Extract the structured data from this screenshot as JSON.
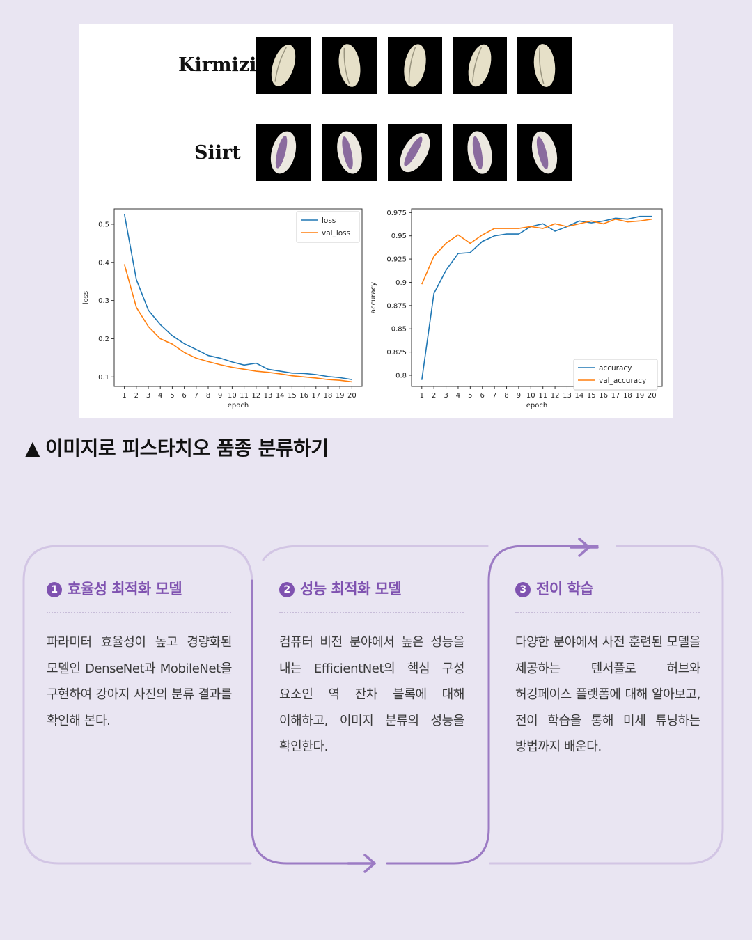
{
  "figure": {
    "rows": [
      {
        "label": "Kirmizi",
        "tiles": [
          "kirmizi-sample-1",
          "kirmizi-sample-2",
          "kirmizi-sample-3",
          "kirmizi-sample-4",
          "kirmizi-sample-5"
        ]
      },
      {
        "label": "Siirt",
        "tiles": [
          "siirt-sample-1",
          "siirt-sample-2",
          "siirt-sample-3",
          "siirt-sample-4",
          "siirt-sample-5"
        ]
      }
    ]
  },
  "chart_data": [
    {
      "type": "line",
      "xlabel": "epoch",
      "ylabel": "loss",
      "x": [
        1,
        2,
        3,
        4,
        5,
        6,
        7,
        8,
        9,
        10,
        11,
        12,
        13,
        14,
        15,
        16,
        17,
        18,
        19,
        20
      ],
      "yticks": [
        0.1,
        0.2,
        0.3,
        0.4,
        0.5
      ],
      "ylim": [
        0.075,
        0.54
      ],
      "legend_position": "top-right",
      "series": [
        {
          "name": "loss",
          "color": "#1f77b4",
          "values": [
            0.527,
            0.355,
            0.275,
            0.237,
            0.208,
            0.187,
            0.172,
            0.156,
            0.149,
            0.139,
            0.131,
            0.136,
            0.12,
            0.115,
            0.11,
            0.109,
            0.106,
            0.101,
            0.098,
            0.093
          ]
        },
        {
          "name": "val_loss",
          "color": "#ff7f0e",
          "values": [
            0.395,
            0.282,
            0.232,
            0.2,
            0.186,
            0.164,
            0.149,
            0.14,
            0.132,
            0.125,
            0.12,
            0.115,
            0.112,
            0.108,
            0.103,
            0.1,
            0.097,
            0.093,
            0.091,
            0.087
          ]
        }
      ]
    },
    {
      "type": "line",
      "xlabel": "epoch",
      "ylabel": "accuracy",
      "x": [
        1,
        2,
        3,
        4,
        5,
        6,
        7,
        8,
        9,
        10,
        11,
        12,
        13,
        14,
        15,
        16,
        17,
        18,
        19,
        20
      ],
      "yticks": [
        0.8,
        0.825,
        0.85,
        0.875,
        0.9,
        0.925,
        0.95,
        0.975
      ],
      "ylim": [
        0.788,
        0.979
      ],
      "legend_position": "bottom-right",
      "series": [
        {
          "name": "accuracy",
          "color": "#1f77b4",
          "values": [
            0.795,
            0.888,
            0.913,
            0.931,
            0.932,
            0.944,
            0.95,
            0.952,
            0.952,
            0.96,
            0.963,
            0.955,
            0.96,
            0.966,
            0.964,
            0.966,
            0.969,
            0.968,
            0.971,
            0.971
          ]
        },
        {
          "name": "val_accuracy",
          "color": "#ff7f0e",
          "values": [
            0.898,
            0.928,
            0.942,
            0.951,
            0.942,
            0.951,
            0.958,
            0.958,
            0.958,
            0.96,
            0.958,
            0.963,
            0.96,
            0.963,
            0.966,
            0.963,
            0.968,
            0.965,
            0.966,
            0.968
          ]
        }
      ]
    }
  ],
  "caption": {
    "marker": "▲",
    "text": "이미지로 피스타치오 품종 분류하기"
  },
  "cards": [
    {
      "number": "1",
      "title": "효율성 최적화 모델",
      "body": "파라미터 효율성이 높고 경량화된 모델인 DenseNet과 MobileNet을 구현하여 강아지 사진의 분류 결과를 확인해 본다."
    },
    {
      "number": "2",
      "title": "성능 최적화 모델",
      "body": "컴퓨터 비전 분야에서 높은 성능을 내는 EfficientNet의 핵심 구성 요소인 역 잔차 블록에 대해 이해하고, 이미지 분류의 성능을 확인한다."
    },
    {
      "number": "3",
      "title": "전이 학습",
      "body": "다양한 분야에서 사전 훈련된 모델을 제공하는 텐서플로 허브와 허깅페이스 플랫폼에 대해 알아보고, 전이 학습을 통해 미세 튜닝하는 방법까지 배운다."
    }
  ],
  "colors": {
    "accent": "#7f52b0",
    "frame": "#c4b3da",
    "background": "#e9e5f2"
  }
}
